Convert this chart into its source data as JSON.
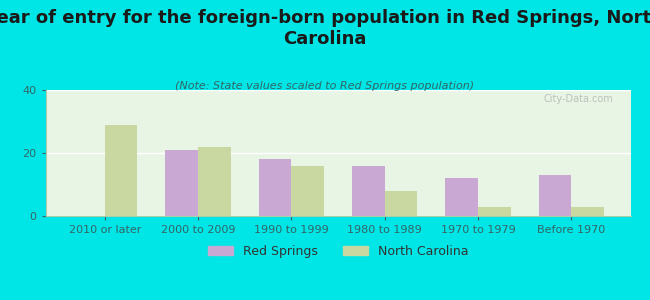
{
  "title": "Year of entry for the foreign-born population in Red Springs, North\nCarolina",
  "subtitle": "(Note: State values scaled to Red Springs population)",
  "categories": [
    "2010 or later",
    "2000 to 2009",
    "1990 to 1999",
    "1980 to 1989",
    "1970 to 1979",
    "Before 1970"
  ],
  "red_springs": [
    0,
    21,
    18,
    16,
    12,
    13
  ],
  "north_carolina": [
    29,
    22,
    16,
    8,
    3,
    3
  ],
  "bar_color_rs": "#c9a8d4",
  "bar_color_nc": "#c8d8a0",
  "background_outer": "#00e5e5",
  "background_plot": "#e8f5e5",
  "ylim": [
    0,
    40
  ],
  "yticks": [
    0,
    20,
    40
  ],
  "legend_labels": [
    "Red Springs",
    "North Carolina"
  ],
  "watermark": "City-Data.com",
  "title_fontsize": 13,
  "subtitle_fontsize": 8,
  "axis_fontsize": 8,
  "legend_fontsize": 9
}
